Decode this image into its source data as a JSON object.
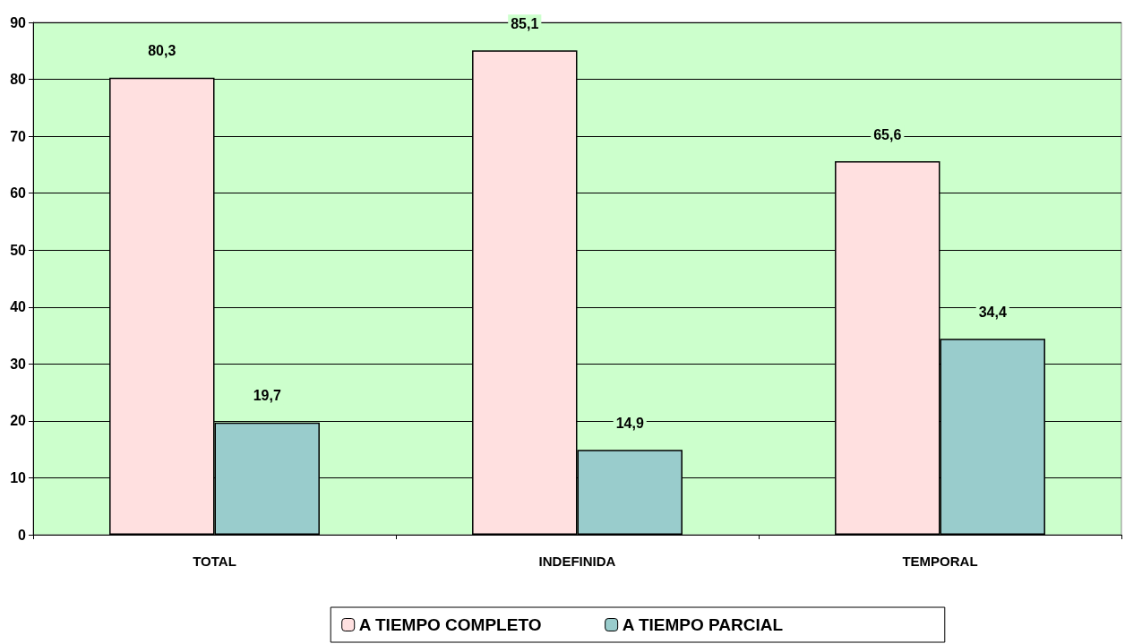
{
  "chart_data": {
    "type": "bar",
    "categories": [
      "TOTAL",
      "INDEFINIDA",
      "TEMPORAL"
    ],
    "series": [
      {
        "name": "A TIEMPO COMPLETO",
        "color": "#ffe0e0",
        "values": [
          80.3,
          85.1,
          65.6
        ],
        "value_labels": [
          "80,3",
          "85,1",
          "65,6"
        ]
      },
      {
        "name": "A TIEMPO PARCIAL",
        "color": "#99cccc",
        "values": [
          19.7,
          14.9,
          34.4
        ],
        "value_labels": [
          "19,7",
          "14,9",
          "34,4"
        ]
      }
    ],
    "ylim": [
      0,
      90
    ],
    "yticks": [
      0,
      10,
      20,
      30,
      40,
      50,
      60,
      70,
      80,
      90
    ],
    "grid": "y",
    "legend": "bottom"
  }
}
